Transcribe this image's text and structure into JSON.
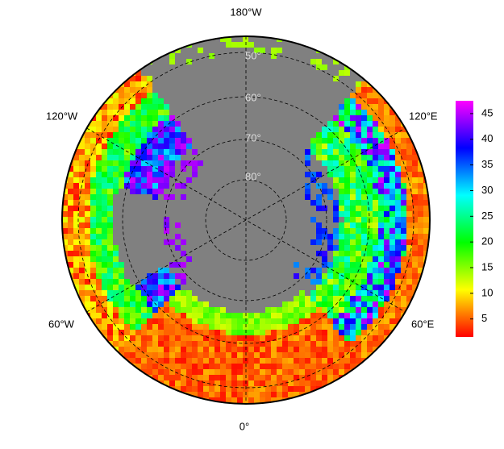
{
  "map": {
    "longitude_labels": [
      "180°W",
      "120°E",
      "60°E",
      "0°",
      "60°W",
      "120°W"
    ],
    "latitude_labels": [
      "50°",
      "60°",
      "70°",
      "80°"
    ],
    "colorbar": {
      "clim": [
        1.5,
        47.5
      ],
      "ticks": [
        5,
        10,
        15,
        20,
        25,
        30,
        35,
        40,
        45
      ]
    }
  }
}
